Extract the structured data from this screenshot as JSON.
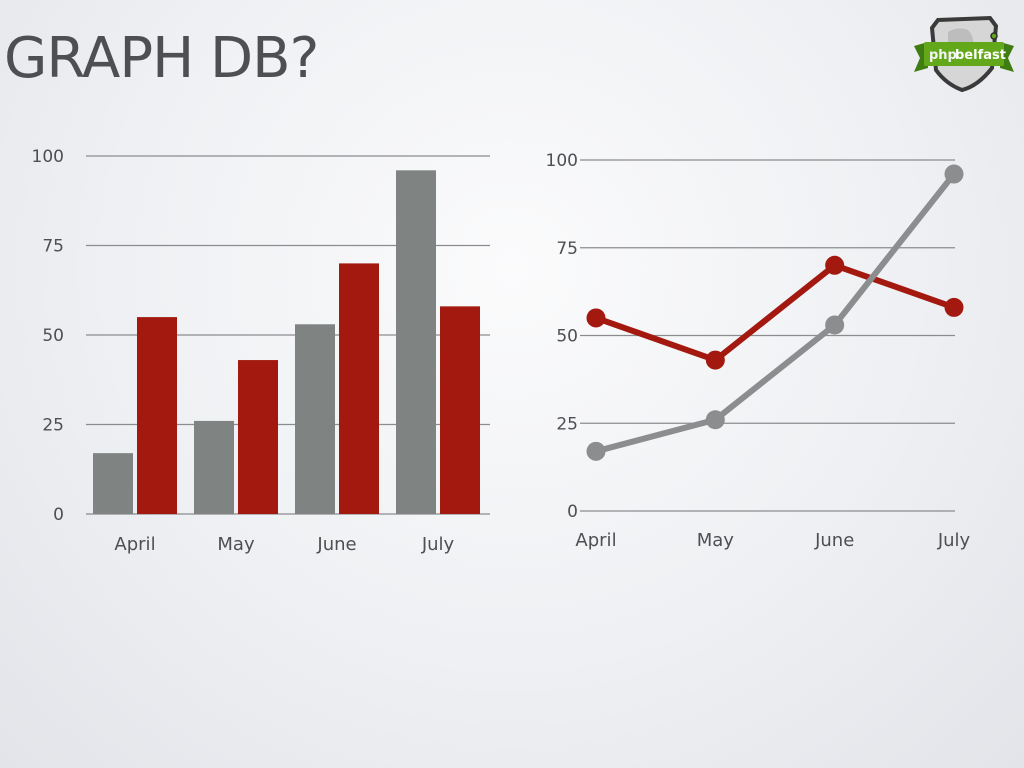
{
  "slide": {
    "title": "GRAPH DB?"
  },
  "logo": {
    "text_php": "php",
    "text_belfast": "belfast"
  },
  "colors": {
    "gray": "#7f8483",
    "red": "#a3190f",
    "grid": "#8a8c90",
    "text": "#4d4f53"
  },
  "chart_data": [
    {
      "type": "bar",
      "categories": [
        "April",
        "May",
        "June",
        "July"
      ],
      "series": [
        {
          "values": [
            17,
            26,
            53,
            96
          ],
          "color": "#7f8483"
        },
        {
          "values": [
            55,
            43,
            70,
            58
          ],
          "color": "#a3190f"
        }
      ],
      "yticks": [
        "0",
        "25",
        "50",
        "75",
        "100"
      ],
      "ylim": [
        0,
        100
      ],
      "grid": true
    },
    {
      "type": "line",
      "categories": [
        "April",
        "May",
        "June",
        "July"
      ],
      "series": [
        {
          "values": [
            55,
            43,
            70,
            58
          ],
          "color": "#a3190f"
        },
        {
          "values": [
            17,
            26,
            53,
            96
          ],
          "color": "#8b8d8f"
        }
      ],
      "yticks": [
        "0",
        "25",
        "50",
        "75",
        "100"
      ],
      "ylim": [
        0,
        100
      ],
      "grid": true
    }
  ]
}
